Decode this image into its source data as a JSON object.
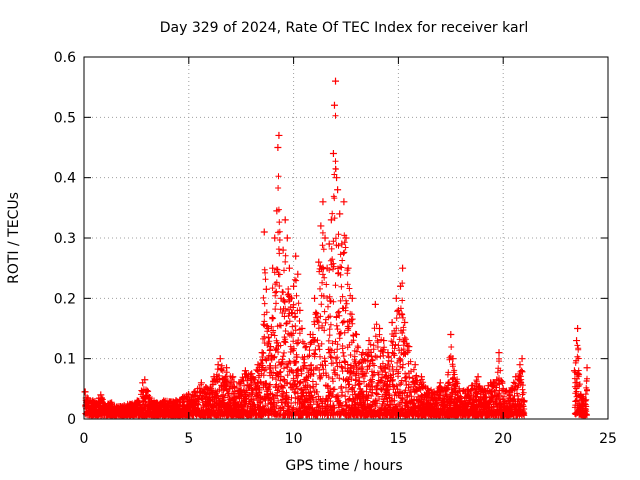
{
  "chart_data": {
    "type": "scatter",
    "title": "Day 329 of 2024, Rate Of TEC Index for receiver karl",
    "xlabel": "GPS time / hours",
    "ylabel": "ROTI / TECUs",
    "xlim": [
      0,
      25
    ],
    "ylim": [
      0,
      0.6
    ],
    "xticks": [
      0,
      5,
      10,
      15,
      20,
      25
    ],
    "yticks": [
      0,
      0.1,
      0.2,
      0.3,
      0.4,
      0.5,
      0.6
    ],
    "xtick_labels": [
      "0",
      "5",
      "10",
      "15",
      "20",
      "25"
    ],
    "ytick_labels": [
      "0",
      "0.1",
      "0.2",
      "0.3",
      "0.4",
      "0.5",
      "0.6"
    ],
    "grid": true,
    "marker": "plus",
    "color": "#ff0000",
    "series": [
      {
        "points": [
          [
            0.05,
            0.045
          ],
          [
            0.15,
            0.035
          ],
          [
            0.3,
            0.03
          ],
          [
            0.45,
            0.028
          ],
          [
            0.6,
            0.025
          ],
          [
            0.8,
            0.04
          ],
          [
            1.0,
            0.02
          ],
          [
            1.3,
            0.025
          ],
          [
            1.6,
            0.018
          ],
          [
            1.9,
            0.02
          ],
          [
            2.2,
            0.022
          ],
          [
            2.5,
            0.025
          ],
          [
            2.8,
            0.06
          ],
          [
            2.9,
            0.065
          ],
          [
            3.2,
            0.03
          ],
          [
            3.5,
            0.025
          ],
          [
            3.8,
            0.03
          ],
          [
            4.1,
            0.028
          ],
          [
            4.4,
            0.03
          ],
          [
            4.7,
            0.035
          ],
          [
            5.0,
            0.04
          ],
          [
            5.3,
            0.045
          ],
          [
            5.6,
            0.06
          ],
          [
            5.9,
            0.05
          ],
          [
            6.2,
            0.07
          ],
          [
            6.4,
            0.09
          ],
          [
            6.5,
            0.1
          ],
          [
            6.8,
            0.085
          ],
          [
            7.1,
            0.07
          ],
          [
            7.4,
            0.06
          ],
          [
            7.7,
            0.08
          ],
          [
            8.0,
            0.075
          ],
          [
            8.3,
            0.09
          ],
          [
            8.5,
            0.11
          ],
          [
            8.6,
            0.31
          ],
          [
            8.7,
            0.215
          ],
          [
            8.8,
            0.15
          ],
          [
            8.9,
            0.12
          ],
          [
            9.0,
            0.25
          ],
          [
            9.1,
            0.3
          ],
          [
            9.2,
            0.345
          ],
          [
            9.25,
            0.45
          ],
          [
            9.3,
            0.47
          ],
          [
            9.4,
            0.2
          ],
          [
            9.5,
            0.28
          ],
          [
            9.6,
            0.33
          ],
          [
            9.7,
            0.3
          ],
          [
            9.8,
            0.25
          ],
          [
            9.9,
            0.2
          ],
          [
            10.0,
            0.22
          ],
          [
            10.1,
            0.27
          ],
          [
            10.2,
            0.24
          ],
          [
            10.3,
            0.18
          ],
          [
            10.4,
            0.15
          ],
          [
            10.6,
            0.12
          ],
          [
            10.8,
            0.14
          ],
          [
            11.0,
            0.2
          ],
          [
            11.2,
            0.26
          ],
          [
            11.3,
            0.32
          ],
          [
            11.4,
            0.36
          ],
          [
            11.5,
            0.3
          ],
          [
            11.6,
            0.25
          ],
          [
            11.7,
            0.29
          ],
          [
            11.8,
            0.33
          ],
          [
            11.9,
            0.44
          ],
          [
            11.95,
            0.52
          ],
          [
            12.0,
            0.56
          ],
          [
            12.05,
            0.4
          ],
          [
            12.1,
            0.38
          ],
          [
            12.2,
            0.34
          ],
          [
            12.3,
            0.29
          ],
          [
            12.4,
            0.36
          ],
          [
            12.5,
            0.3
          ],
          [
            12.6,
            0.25
          ],
          [
            12.8,
            0.2
          ],
          [
            13.0,
            0.14
          ],
          [
            13.3,
            0.11
          ],
          [
            13.6,
            0.13
          ],
          [
            13.9,
            0.19
          ],
          [
            14.1,
            0.15
          ],
          [
            14.3,
            0.13
          ],
          [
            14.5,
            0.11
          ],
          [
            14.7,
            0.16
          ],
          [
            14.9,
            0.2
          ],
          [
            15.0,
            0.18
          ],
          [
            15.1,
            0.22
          ],
          [
            15.2,
            0.25
          ],
          [
            15.3,
            0.16
          ],
          [
            15.5,
            0.12
          ],
          [
            15.8,
            0.09
          ],
          [
            16.1,
            0.07
          ],
          [
            16.4,
            0.05
          ],
          [
            16.7,
            0.045
          ],
          [
            17.0,
            0.06
          ],
          [
            17.3,
            0.05
          ],
          [
            17.5,
            0.14
          ],
          [
            17.6,
            0.1
          ],
          [
            17.9,
            0.05
          ],
          [
            18.2,
            0.045
          ],
          [
            18.5,
            0.055
          ],
          [
            18.8,
            0.07
          ],
          [
            19.1,
            0.05
          ],
          [
            19.4,
            0.06
          ],
          [
            19.7,
            0.065
          ],
          [
            19.8,
            0.11
          ],
          [
            20.0,
            0.05
          ],
          [
            20.3,
            0.045
          ],
          [
            20.6,
            0.07
          ],
          [
            20.8,
            0.09
          ],
          [
            20.9,
            0.1
          ],
          [
            21.0,
            0.03
          ],
          [
            23.4,
            0.08
          ],
          [
            23.5,
            0.13
          ],
          [
            23.55,
            0.15
          ],
          [
            23.7,
            0.04
          ],
          [
            23.9,
            0.03
          ],
          [
            24.0,
            0.085
          ]
        ]
      }
    ]
  }
}
